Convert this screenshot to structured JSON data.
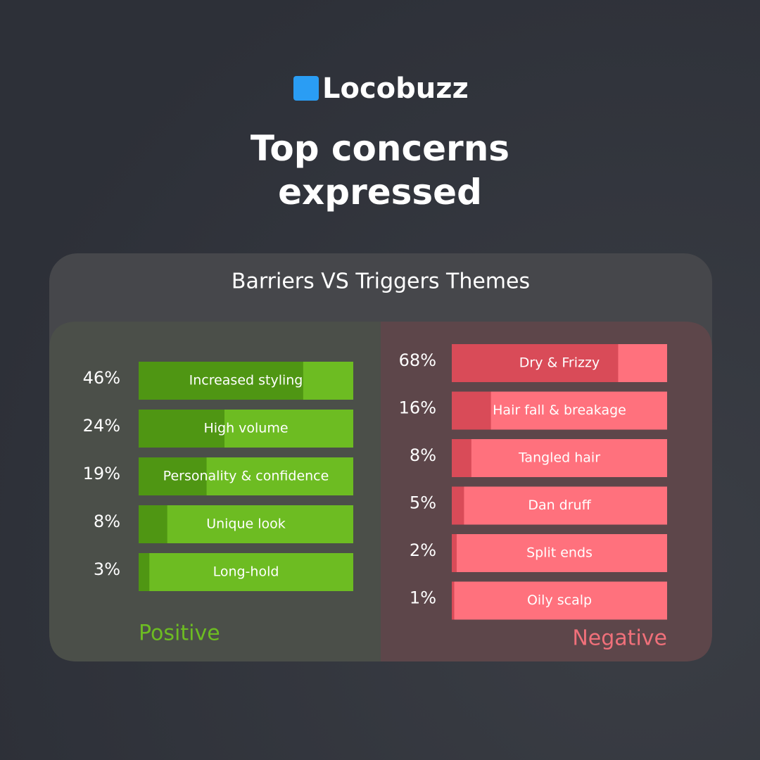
{
  "brand": "Locobuzz",
  "title": "Top concerns expressed",
  "panel_title": "Barriers VS Triggers Themes",
  "chart_data": [
    {
      "type": "bar",
      "label": "Positive",
      "categories": [
        "Increased styling",
        "High volume",
        "Personality & confidence",
        "Unique look",
        "Long-hold"
      ],
      "values": [
        46,
        24,
        19,
        8,
        3
      ],
      "value_labels": [
        "46%",
        "24%",
        "19%",
        "8%",
        "3%"
      ],
      "color": "#4f9613",
      "track_color": "#6dbc22",
      "label_color": "#6dbc22",
      "xlim": [
        0,
        60
      ]
    },
    {
      "type": "bar",
      "label": "Negative",
      "categories": [
        "Dry & Frizzy",
        "Hair fall & breakage",
        "Tangled hair",
        "Dan druff",
        "Split ends",
        "Oily scalp"
      ],
      "values": [
        68,
        16,
        8,
        5,
        2,
        1
      ],
      "value_labels": [
        "68%",
        "16%",
        "8%",
        "5%",
        "2%",
        "1%"
      ],
      "color": "#d94b58",
      "track_color": "#ff717d",
      "label_color": "#f0707a",
      "xlim": [
        0,
        88
      ]
    }
  ]
}
